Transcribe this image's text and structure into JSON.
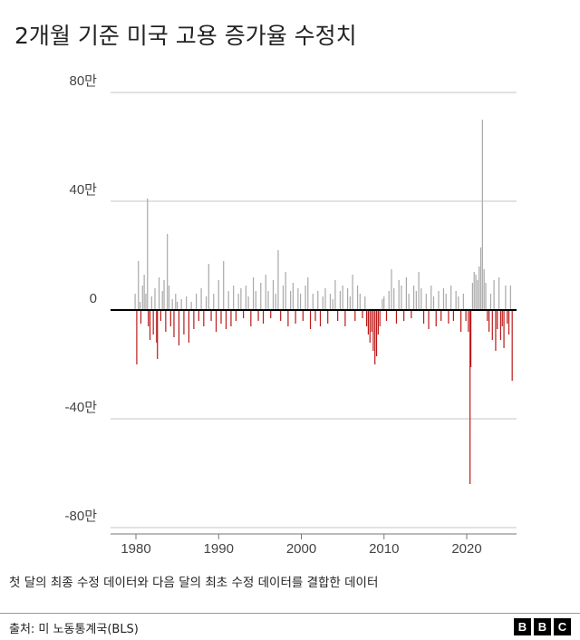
{
  "title": "2개월 기준 미국 고용 증가율 수정치",
  "note": "첫 달의 최종 수정 데이터와 다음 달의 최초 수정 데이터를 결합한 데이터",
  "source": "출처: 미 노동통계국(BLS)",
  "logo": [
    "B",
    "B",
    "C"
  ],
  "colors": {
    "positive": "#a8a8a8",
    "negative": "#bb1919",
    "grid": "#d9d9d9",
    "zero": "#000000"
  },
  "chart_data": {
    "type": "bar",
    "title": "2개월 기준 미국 고용 증가율 수정치",
    "ylim": [
      -800000,
      800000
    ],
    "xlim": [
      1979,
      2026
    ],
    "y_ticks": [
      {
        "value": 800000,
        "label": "80만"
      },
      {
        "value": 400000,
        "label": "40만"
      },
      {
        "value": 0,
        "label": "0"
      },
      {
        "value": -400000,
        "label": "-40만"
      },
      {
        "value": -800000,
        "label": "-80만"
      }
    ],
    "x_ticks": [
      {
        "value": 1980,
        "label": "1980"
      },
      {
        "value": 1990,
        "label": "1990"
      },
      {
        "value": 2000,
        "label": "2000"
      },
      {
        "value": 2010,
        "label": "2010"
      },
      {
        "value": 2020,
        "label": "2020"
      }
    ],
    "points": [
      [
        1979.9,
        60000
      ],
      [
        1980.1,
        -200000
      ],
      [
        1980.3,
        180000
      ],
      [
        1980.5,
        30000
      ],
      [
        1980.6,
        -50000
      ],
      [
        1980.8,
        90000
      ],
      [
        1981.0,
        130000
      ],
      [
        1981.2,
        60000
      ],
      [
        1981.4,
        410000
      ],
      [
        1981.5,
        -60000
      ],
      [
        1981.7,
        -110000
      ],
      [
        1981.9,
        50000
      ],
      [
        1982.1,
        -90000
      ],
      [
        1982.3,
        80000
      ],
      [
        1982.5,
        -120000
      ],
      [
        1982.6,
        -180000
      ],
      [
        1982.8,
        120000
      ],
      [
        1983.0,
        -40000
      ],
      [
        1983.2,
        70000
      ],
      [
        1983.4,
        110000
      ],
      [
        1983.6,
        -80000
      ],
      [
        1983.8,
        280000
      ],
      [
        1984.0,
        90000
      ],
      [
        1984.2,
        -60000
      ],
      [
        1984.4,
        40000
      ],
      [
        1984.6,
        -100000
      ],
      [
        1984.8,
        60000
      ],
      [
        1985.0,
        30000
      ],
      [
        1985.2,
        -130000
      ],
      [
        1985.5,
        40000
      ],
      [
        1985.8,
        -90000
      ],
      [
        1986.1,
        50000
      ],
      [
        1986.4,
        -120000
      ],
      [
        1986.7,
        30000
      ],
      [
        1987.0,
        -70000
      ],
      [
        1987.3,
        60000
      ],
      [
        1987.6,
        -40000
      ],
      [
        1987.9,
        80000
      ],
      [
        1988.2,
        -60000
      ],
      [
        1988.5,
        50000
      ],
      [
        1988.8,
        170000
      ],
      [
        1989.1,
        -40000
      ],
      [
        1989.4,
        60000
      ],
      [
        1989.7,
        -80000
      ],
      [
        1990.0,
        110000
      ],
      [
        1990.3,
        -50000
      ],
      [
        1990.6,
        180000
      ],
      [
        1990.9,
        -70000
      ],
      [
        1991.2,
        70000
      ],
      [
        1991.5,
        -60000
      ],
      [
        1991.8,
        90000
      ],
      [
        1992.1,
        -40000
      ],
      [
        1992.4,
        60000
      ],
      [
        1992.7,
        80000
      ],
      [
        1993.0,
        -30000
      ],
      [
        1993.3,
        90000
      ],
      [
        1993.6,
        50000
      ],
      [
        1993.9,
        -60000
      ],
      [
        1994.2,
        120000
      ],
      [
        1994.5,
        70000
      ],
      [
        1994.8,
        -40000
      ],
      [
        1995.1,
        100000
      ],
      [
        1995.4,
        -50000
      ],
      [
        1995.7,
        130000
      ],
      [
        1996.0,
        70000
      ],
      [
        1996.3,
        -30000
      ],
      [
        1996.6,
        110000
      ],
      [
        1996.9,
        60000
      ],
      [
        1997.2,
        220000
      ],
      [
        1997.5,
        -40000
      ],
      [
        1997.8,
        90000
      ],
      [
        1998.1,
        140000
      ],
      [
        1998.4,
        -60000
      ],
      [
        1998.7,
        70000
      ],
      [
        1999.0,
        100000
      ],
      [
        1999.3,
        -50000
      ],
      [
        1999.6,
        80000
      ],
      [
        1999.9,
        60000
      ],
      [
        2000.2,
        -40000
      ],
      [
        2000.5,
        90000
      ],
      [
        2000.8,
        120000
      ],
      [
        2001.1,
        -70000
      ],
      [
        2001.4,
        60000
      ],
      [
        2001.7,
        -40000
      ],
      [
        2002.0,
        70000
      ],
      [
        2002.3,
        -60000
      ],
      [
        2002.6,
        50000
      ],
      [
        2002.9,
        80000
      ],
      [
        2003.2,
        -50000
      ],
      [
        2003.5,
        60000
      ],
      [
        2003.8,
        40000
      ],
      [
        2004.1,
        110000
      ],
      [
        2004.4,
        -40000
      ],
      [
        2004.7,
        70000
      ],
      [
        2005.0,
        90000
      ],
      [
        2005.3,
        -60000
      ],
      [
        2005.6,
        80000
      ],
      [
        2005.9,
        50000
      ],
      [
        2006.2,
        130000
      ],
      [
        2006.5,
        -40000
      ],
      [
        2006.8,
        90000
      ],
      [
        2007.1,
        60000
      ],
      [
        2007.4,
        -30000
      ],
      [
        2007.7,
        50000
      ],
      [
        2007.9,
        -60000
      ],
      [
        2008.1,
        -90000
      ],
      [
        2008.3,
        -120000
      ],
      [
        2008.5,
        -80000
      ],
      [
        2008.7,
        -150000
      ],
      [
        2008.9,
        -200000
      ],
      [
        2009.1,
        -170000
      ],
      [
        2009.3,
        -90000
      ],
      [
        2009.5,
        -60000
      ],
      [
        2009.8,
        40000
      ],
      [
        2010.0,
        50000
      ],
      [
        2010.3,
        -40000
      ],
      [
        2010.6,
        70000
      ],
      [
        2010.9,
        150000
      ],
      [
        2011.2,
        80000
      ],
      [
        2011.5,
        -50000
      ],
      [
        2011.8,
        110000
      ],
      [
        2012.1,
        90000
      ],
      [
        2012.4,
        -40000
      ],
      [
        2012.7,
        120000
      ],
      [
        2013.0,
        60000
      ],
      [
        2013.3,
        -30000
      ],
      [
        2013.6,
        90000
      ],
      [
        2013.9,
        70000
      ],
      [
        2014.2,
        140000
      ],
      [
        2014.5,
        80000
      ],
      [
        2014.8,
        -50000
      ],
      [
        2015.1,
        60000
      ],
      [
        2015.4,
        -70000
      ],
      [
        2015.7,
        90000
      ],
      [
        2016.0,
        50000
      ],
      [
        2016.3,
        -60000
      ],
      [
        2016.6,
        70000
      ],
      [
        2016.9,
        -40000
      ],
      [
        2017.2,
        80000
      ],
      [
        2017.5,
        60000
      ],
      [
        2017.8,
        -50000
      ],
      [
        2018.1,
        90000
      ],
      [
        2018.4,
        -40000
      ],
      [
        2018.7,
        70000
      ],
      [
        2019.0,
        50000
      ],
      [
        2019.3,
        -80000
      ],
      [
        2019.6,
        60000
      ],
      [
        2019.9,
        -40000
      ],
      [
        2020.2,
        -80000
      ],
      [
        2020.4,
        -640000
      ],
      [
        2020.5,
        -210000
      ],
      [
        2020.7,
        100000
      ],
      [
        2020.9,
        140000
      ],
      [
        2021.1,
        130000
      ],
      [
        2021.3,
        110000
      ],
      [
        2021.5,
        160000
      ],
      [
        2021.7,
        230000
      ],
      [
        2021.9,
        700000
      ],
      [
        2022.1,
        150000
      ],
      [
        2022.3,
        100000
      ],
      [
        2022.5,
        -40000
      ],
      [
        2022.7,
        -80000
      ],
      [
        2022.9,
        60000
      ],
      [
        2023.1,
        -110000
      ],
      [
        2023.3,
        110000
      ],
      [
        2023.5,
        -150000
      ],
      [
        2023.7,
        -70000
      ],
      [
        2023.9,
        120000
      ],
      [
        2024.1,
        -110000
      ],
      [
        2024.3,
        -60000
      ],
      [
        2024.5,
        -140000
      ],
      [
        2024.7,
        90000
      ],
      [
        2024.9,
        -50000
      ],
      [
        2025.1,
        -90000
      ],
      [
        2025.3,
        90000
      ],
      [
        2025.5,
        -260000
      ]
    ]
  }
}
